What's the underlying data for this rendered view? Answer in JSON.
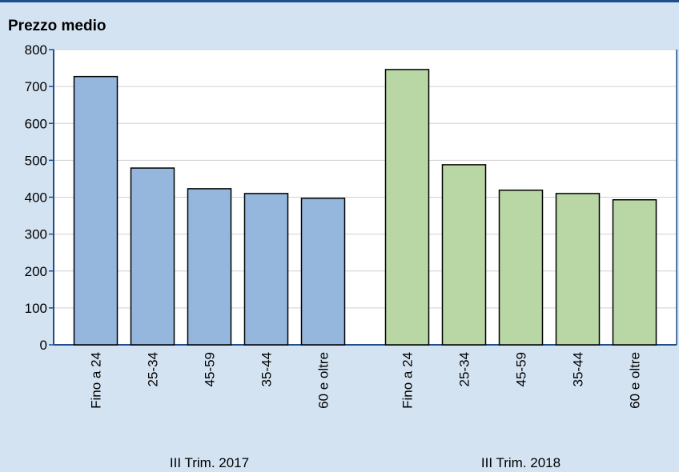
{
  "chart_data": {
    "type": "bar",
    "title": "Prezzo medio",
    "series": [
      {
        "name": "III Trim. 2017",
        "color": "#95b7dd",
        "categories": [
          "Fino a 24",
          "25-34",
          "45-59",
          "35-44",
          "60 e oltre"
        ],
        "values": [
          727,
          479,
          423,
          410,
          397
        ]
      },
      {
        "name": "III Trim. 2018",
        "color": "#b9d6a5",
        "categories": [
          "Fino a 24",
          "25-34",
          "45-59",
          "35-44",
          "60 e oltre"
        ],
        "values": [
          746,
          488,
          419,
          410,
          393
        ]
      }
    ],
    "ylim": [
      0,
      800
    ],
    "yticks": [
      0,
      100,
      200,
      300,
      400,
      500,
      600,
      700,
      800
    ],
    "grid": true
  }
}
